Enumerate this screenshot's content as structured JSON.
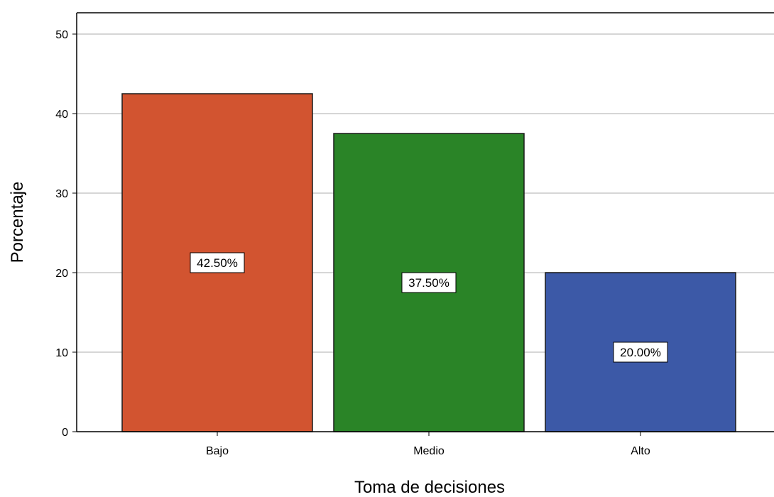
{
  "chart_data": {
    "type": "bar",
    "categories": [
      "Bajo",
      "Medio",
      "Alto"
    ],
    "values": [
      42.5,
      37.5,
      20.0
    ],
    "data_labels": [
      "42.50%",
      "37.50%",
      "20.00%"
    ],
    "colors": [
      "#d25430",
      "#2a8427",
      "#3c59a7"
    ],
    "xlabel": "Toma de decisiones",
    "ylabel": "Porcentaje",
    "ylim": [
      0,
      50
    ],
    "yticks": [
      0,
      10,
      20,
      30,
      40,
      50
    ],
    "grid": true,
    "legend": "none"
  }
}
